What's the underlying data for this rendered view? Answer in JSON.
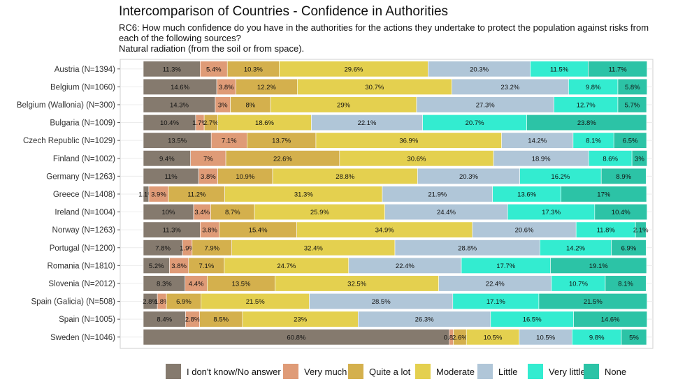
{
  "chart_data": {
    "type": "bar",
    "orientation": "horizontal",
    "stacked": true,
    "title": "Intercomparison of Countries - Confidence in Authorities",
    "subtitle_lines": [
      "RC6: How much confidence do you have in the authorities for the actions they undertake to protect the population against risks from",
      "each of the following sources?",
      "Natural radiation (from the soil or from space)."
    ],
    "xlabel": "",
    "ylabel": "",
    "xlim": [
      0,
      100
    ],
    "legend_position": "bottom",
    "categories": [
      "Austria (N=1394)",
      "Belgium (N=1060)",
      "Belgium (Wallonia) (N=300)",
      "Bulgaria (N=1009)",
      "Czech Republic (N=1029)",
      "Finland (N=1002)",
      "Germany (N=1263)",
      "Greece (N=1408)",
      "Ireland (N=1004)",
      "Norway (N=1263)",
      "Portugal (N=1200)",
      "Romania (N=1810)",
      "Slovenia (N=2012)",
      "Spain (Galicia) (N=508)",
      "Spain (N=1005)",
      "Sweden (N=1046)"
    ],
    "series": [
      {
        "name": "I don't know/No answer",
        "color": "#857a6e",
        "values": [
          11.3,
          14.6,
          14.3,
          10.4,
          13.5,
          9.4,
          11,
          1.1,
          10,
          11.3,
          7.8,
          5.2,
          8.3,
          2.8,
          8.4,
          60.8
        ]
      },
      {
        "name": "Very much",
        "color": "#df9b77",
        "values": [
          5.4,
          3.8,
          3,
          1.7,
          7.1,
          7,
          3.8,
          3.9,
          3.4,
          3.8,
          1.9,
          3.8,
          4.4,
          1.8,
          2.8,
          0.8
        ]
      },
      {
        "name": "Quite a lot",
        "color": "#d4b04d",
        "values": [
          10.3,
          12.2,
          8,
          2.7,
          13.7,
          22.6,
          10.9,
          11.2,
          8.7,
          15.4,
          7.9,
          7.1,
          13.5,
          6.9,
          8.5,
          2.6
        ]
      },
      {
        "name": "Moderate",
        "color": "#e4d04f",
        "values": [
          29.6,
          30.7,
          29,
          18.6,
          36.9,
          30.6,
          28.8,
          31.3,
          25.9,
          34.9,
          32.4,
          24.7,
          32.5,
          21.5,
          23,
          10.5
        ]
      },
      {
        "name": "Little",
        "color": "#b0c6d8",
        "values": [
          20.3,
          23.2,
          27.3,
          22.1,
          14.2,
          18.9,
          20.3,
          21.9,
          24.4,
          20.6,
          28.8,
          22.4,
          22.4,
          28.5,
          26.3,
          10.5
        ]
      },
      {
        "name": "Very little",
        "color": "#33ecd0",
        "values": [
          11.5,
          9.8,
          12.7,
          20.7,
          8.1,
          8.6,
          16.2,
          13.6,
          17.3,
          11.8,
          14.2,
          17.7,
          10.7,
          17.1,
          16.5,
          9.8
        ]
      },
      {
        "name": "None",
        "color": "#2cc3a6",
        "values": [
          11.7,
          5.8,
          5.7,
          23.8,
          6.5,
          3,
          8.9,
          17,
          10.4,
          2.1,
          6.9,
          19.1,
          8.1,
          21.5,
          14.6,
          5
        ]
      }
    ]
  }
}
